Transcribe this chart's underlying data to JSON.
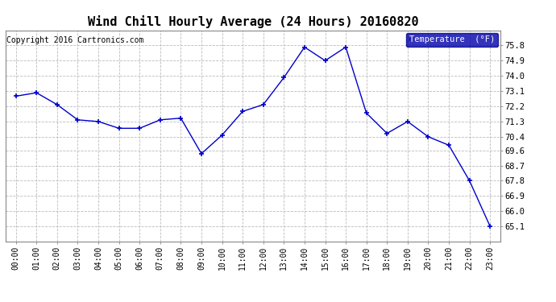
{
  "title": "Wind Chill Hourly Average (24 Hours) 20160820",
  "copyright": "Copyright 2016 Cartronics.com",
  "legend_label": "Temperature  (°F)",
  "x_labels": [
    "00:00",
    "01:00",
    "02:00",
    "03:00",
    "04:00",
    "05:00",
    "06:00",
    "07:00",
    "08:00",
    "09:00",
    "10:00",
    "11:00",
    "12:00",
    "13:00",
    "14:00",
    "15:00",
    "16:00",
    "17:00",
    "18:00",
    "19:00",
    "20:00",
    "21:00",
    "22:00",
    "23:00"
  ],
  "y_values": [
    72.8,
    73.0,
    72.3,
    71.4,
    71.3,
    70.9,
    70.9,
    71.4,
    71.5,
    69.4,
    70.5,
    71.9,
    72.3,
    73.9,
    75.7,
    74.9,
    75.7,
    71.8,
    70.6,
    71.3,
    70.4,
    69.9,
    67.8,
    65.1
  ],
  "ylim_min": 64.2,
  "ylim_max": 76.7,
  "yticks": [
    65.1,
    66.0,
    66.9,
    67.8,
    68.7,
    69.6,
    70.4,
    71.3,
    72.2,
    73.1,
    74.0,
    74.9,
    75.8
  ],
  "line_color": "#0000cc",
  "marker": "+",
  "marker_size": 5,
  "bg_color": "#ffffff",
  "plot_bg_color": "#ffffff",
  "grid_color": "#bbbbbb",
  "title_fontsize": 11,
  "copyright_fontsize": 7,
  "legend_bg": "#0000aa",
  "legend_text_color": "#ffffff"
}
